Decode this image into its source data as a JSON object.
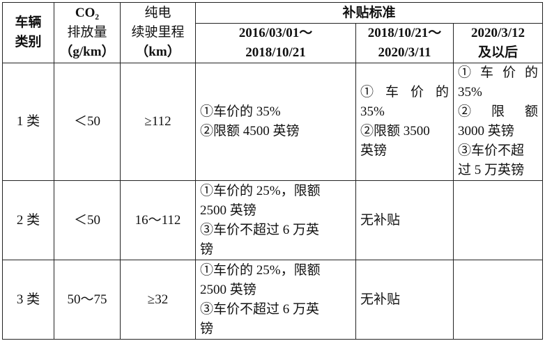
{
  "header": {
    "category": [
      "车辆",
      "类别"
    ],
    "co2": [
      "CO₂",
      "排放量",
      "（g/km）"
    ],
    "range": [
      "纯电",
      "续驶里程",
      "（km）"
    ],
    "subsidy": "补贴标准",
    "periods": [
      [
        "2016/03/01～",
        "2018/10/21"
      ],
      [
        "2018/10/21～",
        "2020/3/11"
      ],
      [
        "2020/3/12",
        "及以后"
      ]
    ]
  },
  "rows": [
    {
      "category": "1 类",
      "co2": "＜50",
      "range": "≥112",
      "p1": [
        "①车价的 35%",
        "②限额 4500 英镑"
      ],
      "p2": [
        "① 车 价 的",
        "35%",
        "②限额 3500",
        "英镑"
      ],
      "p3": [
        "① 车 价 的",
        "35%",
        "② 限 额",
        "3000 英镑",
        "③车价不超",
        "过 5 万英镑"
      ]
    },
    {
      "category": "2 类",
      "co2": "＜50",
      "range": "16～112",
      "p1": [
        "①车价的 25%，限额",
        "2500 英镑",
        "③车价不超过 6 万英",
        "镑"
      ],
      "p2": [
        "无补贴"
      ],
      "p3": []
    },
    {
      "category": "3 类",
      "co2": "50～75",
      "range": "≥32",
      "p1": [
        "①车价的 25%，限额",
        "2500 英镑",
        "③车价不超过 6 万英",
        "镑"
      ],
      "p2": [
        "无补贴"
      ],
      "p3": []
    }
  ]
}
